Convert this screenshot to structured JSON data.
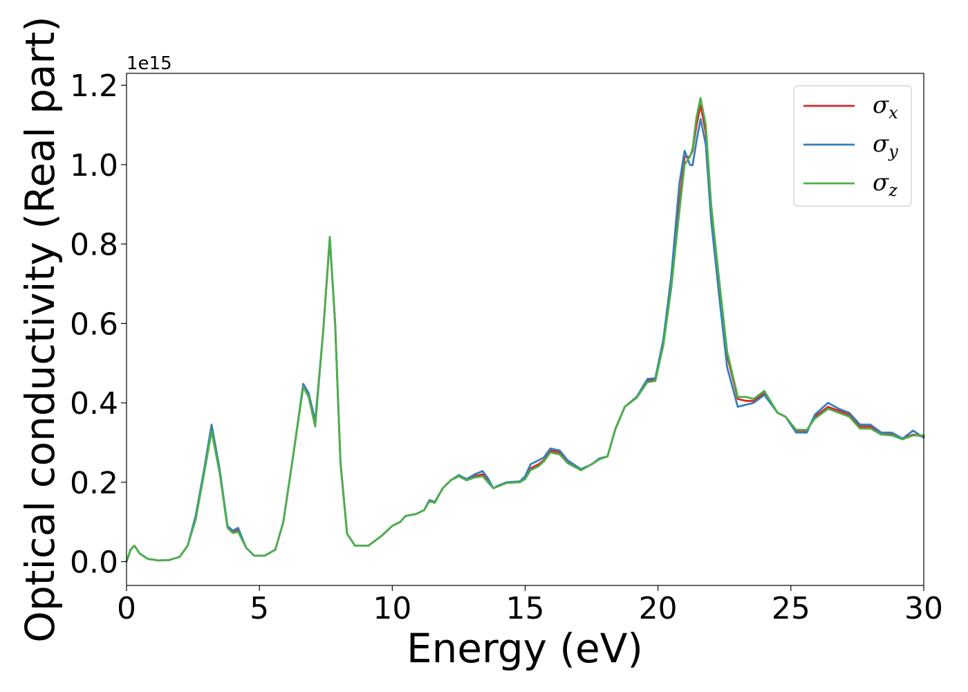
{
  "chart_data": {
    "type": "line",
    "title": "",
    "xlabel": "Energy (eV)",
    "ylabel": "Optical conductivity (Real part)",
    "y_offset_label": "1e15",
    "xlim": [
      0,
      30
    ],
    "ylim": [
      -0.06,
      1.23
    ],
    "x_ticks": [
      0,
      5,
      10,
      15,
      20,
      25,
      30
    ],
    "y_ticks": [
      0.0,
      0.2,
      0.4,
      0.6,
      0.8,
      1.0,
      1.2
    ],
    "y_tick_labels": [
      "0.0",
      "0.2",
      "0.4",
      "0.6",
      "0.8",
      "1.0",
      "1.2"
    ],
    "grid": false,
    "legend_position": "top-right",
    "series": [
      {
        "name": "σ",
        "subscript": "x",
        "color": "#d62728",
        "points": [
          [
            0,
            0.0
          ],
          [
            0.15,
            0.03
          ],
          [
            0.3,
            0.04
          ],
          [
            0.5,
            0.02
          ],
          [
            0.8,
            0.007
          ],
          [
            1.2,
            0.003
          ],
          [
            1.6,
            0.004
          ],
          [
            2.0,
            0.012
          ],
          [
            2.3,
            0.04
          ],
          [
            2.6,
            0.11
          ],
          [
            2.9,
            0.22
          ],
          [
            3.2,
            0.335
          ],
          [
            3.5,
            0.23
          ],
          [
            3.8,
            0.09
          ],
          [
            4.0,
            0.075
          ],
          [
            4.2,
            0.08
          ],
          [
            4.5,
            0.035
          ],
          [
            4.8,
            0.015
          ],
          [
            5.2,
            0.015
          ],
          [
            5.6,
            0.03
          ],
          [
            5.9,
            0.1
          ],
          [
            6.3,
            0.28
          ],
          [
            6.65,
            0.445
          ],
          [
            6.85,
            0.42
          ],
          [
            7.1,
            0.35
          ],
          [
            7.4,
            0.58
          ],
          [
            7.65,
            0.815
          ],
          [
            7.85,
            0.6
          ],
          [
            8.05,
            0.25
          ],
          [
            8.3,
            0.07
          ],
          [
            8.6,
            0.04
          ],
          [
            9.1,
            0.04
          ],
          [
            9.6,
            0.065
          ],
          [
            10.0,
            0.09
          ],
          [
            10.3,
            0.1
          ],
          [
            10.5,
            0.115
          ],
          [
            10.9,
            0.12
          ],
          [
            11.2,
            0.13
          ],
          [
            11.4,
            0.155
          ],
          [
            11.6,
            0.15
          ],
          [
            11.9,
            0.185
          ],
          [
            12.2,
            0.205
          ],
          [
            12.5,
            0.215
          ],
          [
            12.8,
            0.205
          ],
          [
            13.1,
            0.215
          ],
          [
            13.4,
            0.22
          ],
          [
            13.6,
            0.205
          ],
          [
            13.8,
            0.185
          ],
          [
            14.0,
            0.19
          ],
          [
            14.3,
            0.2
          ],
          [
            14.8,
            0.2
          ],
          [
            15.0,
            0.21
          ],
          [
            15.2,
            0.235
          ],
          [
            15.5,
            0.245
          ],
          [
            15.7,
            0.255
          ],
          [
            15.95,
            0.28
          ],
          [
            16.3,
            0.275
          ],
          [
            16.6,
            0.25
          ],
          [
            17.1,
            0.232
          ],
          [
            17.5,
            0.245
          ],
          [
            17.8,
            0.258
          ],
          [
            18.1,
            0.265
          ],
          [
            18.4,
            0.335
          ],
          [
            18.75,
            0.39
          ],
          [
            19.2,
            0.415
          ],
          [
            19.6,
            0.455
          ],
          [
            19.9,
            0.46
          ],
          [
            20.2,
            0.55
          ],
          [
            20.5,
            0.7
          ],
          [
            20.8,
            0.9
          ],
          [
            21.0,
            1.02
          ],
          [
            21.2,
            1.02
          ],
          [
            21.3,
            1.035
          ],
          [
            21.45,
            1.1
          ],
          [
            21.6,
            1.15
          ],
          [
            21.8,
            1.08
          ],
          [
            22.0,
            0.89
          ],
          [
            22.3,
            0.7
          ],
          [
            22.6,
            0.52
          ],
          [
            23.0,
            0.41
          ],
          [
            23.3,
            0.405
          ],
          [
            23.6,
            0.405
          ],
          [
            24.0,
            0.425
          ],
          [
            24.5,
            0.375
          ],
          [
            24.8,
            0.365
          ],
          [
            25.2,
            0.33
          ],
          [
            25.6,
            0.33
          ],
          [
            25.9,
            0.365
          ],
          [
            26.4,
            0.39
          ],
          [
            26.8,
            0.38
          ],
          [
            27.2,
            0.37
          ],
          [
            27.6,
            0.34
          ],
          [
            28.0,
            0.34
          ],
          [
            28.4,
            0.325
          ],
          [
            28.8,
            0.32
          ],
          [
            29.2,
            0.31
          ],
          [
            29.6,
            0.32
          ],
          [
            30.0,
            0.315
          ]
        ]
      },
      {
        "name": "σ",
        "subscript": "y",
        "color": "#377eb8",
        "points": [
          [
            0,
            0.0
          ],
          [
            0.15,
            0.03
          ],
          [
            0.3,
            0.04
          ],
          [
            0.5,
            0.02
          ],
          [
            0.8,
            0.007
          ],
          [
            1.2,
            0.003
          ],
          [
            1.6,
            0.004
          ],
          [
            2.0,
            0.012
          ],
          [
            2.3,
            0.04
          ],
          [
            2.6,
            0.115
          ],
          [
            2.9,
            0.225
          ],
          [
            3.2,
            0.345
          ],
          [
            3.5,
            0.235
          ],
          [
            3.8,
            0.09
          ],
          [
            4.0,
            0.078
          ],
          [
            4.2,
            0.085
          ],
          [
            4.5,
            0.035
          ],
          [
            4.8,
            0.015
          ],
          [
            5.2,
            0.015
          ],
          [
            5.6,
            0.03
          ],
          [
            5.9,
            0.1
          ],
          [
            6.3,
            0.28
          ],
          [
            6.65,
            0.448
          ],
          [
            6.85,
            0.425
          ],
          [
            7.1,
            0.355
          ],
          [
            7.4,
            0.58
          ],
          [
            7.65,
            0.815
          ],
          [
            7.85,
            0.6
          ],
          [
            8.05,
            0.25
          ],
          [
            8.3,
            0.07
          ],
          [
            8.6,
            0.04
          ],
          [
            9.1,
            0.04
          ],
          [
            9.6,
            0.065
          ],
          [
            10.0,
            0.09
          ],
          [
            10.3,
            0.1
          ],
          [
            10.5,
            0.115
          ],
          [
            10.9,
            0.12
          ],
          [
            11.2,
            0.13
          ],
          [
            11.4,
            0.155
          ],
          [
            11.6,
            0.15
          ],
          [
            11.9,
            0.185
          ],
          [
            12.2,
            0.205
          ],
          [
            12.5,
            0.218
          ],
          [
            12.8,
            0.208
          ],
          [
            13.1,
            0.22
          ],
          [
            13.4,
            0.228
          ],
          [
            13.6,
            0.21
          ],
          [
            13.8,
            0.185
          ],
          [
            14.0,
            0.192
          ],
          [
            14.3,
            0.2
          ],
          [
            14.8,
            0.202
          ],
          [
            15.0,
            0.215
          ],
          [
            15.2,
            0.245
          ],
          [
            15.5,
            0.255
          ],
          [
            15.7,
            0.262
          ],
          [
            15.95,
            0.285
          ],
          [
            16.3,
            0.28
          ],
          [
            16.6,
            0.255
          ],
          [
            17.1,
            0.233
          ],
          [
            17.5,
            0.245
          ],
          [
            17.8,
            0.26
          ],
          [
            18.1,
            0.265
          ],
          [
            18.4,
            0.335
          ],
          [
            18.75,
            0.39
          ],
          [
            19.2,
            0.415
          ],
          [
            19.6,
            0.46
          ],
          [
            19.9,
            0.462
          ],
          [
            20.2,
            0.56
          ],
          [
            20.5,
            0.72
          ],
          [
            20.8,
            0.95
          ],
          [
            21.0,
            1.035
          ],
          [
            21.2,
            1.0
          ],
          [
            21.3,
            0.998
          ],
          [
            21.45,
            1.06
          ],
          [
            21.6,
            1.115
          ],
          [
            21.8,
            1.05
          ],
          [
            22.0,
            0.86
          ],
          [
            22.3,
            0.67
          ],
          [
            22.6,
            0.49
          ],
          [
            23.0,
            0.39
          ],
          [
            23.3,
            0.395
          ],
          [
            23.6,
            0.4
          ],
          [
            24.0,
            0.42
          ],
          [
            24.5,
            0.375
          ],
          [
            24.8,
            0.365
          ],
          [
            25.2,
            0.325
          ],
          [
            25.6,
            0.325
          ],
          [
            25.9,
            0.37
          ],
          [
            26.4,
            0.4
          ],
          [
            26.8,
            0.385
          ],
          [
            27.2,
            0.375
          ],
          [
            27.6,
            0.345
          ],
          [
            28.0,
            0.345
          ],
          [
            28.4,
            0.325
          ],
          [
            28.8,
            0.325
          ],
          [
            29.2,
            0.31
          ],
          [
            29.6,
            0.33
          ],
          [
            30.0,
            0.312
          ]
        ]
      },
      {
        "name": "σ",
        "subscript": "z",
        "color": "#4daf4a",
        "points": [
          [
            0,
            0.0
          ],
          [
            0.15,
            0.03
          ],
          [
            0.3,
            0.04
          ],
          [
            0.5,
            0.02
          ],
          [
            0.8,
            0.007
          ],
          [
            1.2,
            0.003
          ],
          [
            1.6,
            0.004
          ],
          [
            2.0,
            0.012
          ],
          [
            2.3,
            0.04
          ],
          [
            2.6,
            0.105
          ],
          [
            2.9,
            0.215
          ],
          [
            3.2,
            0.328
          ],
          [
            3.5,
            0.225
          ],
          [
            3.8,
            0.085
          ],
          [
            4.0,
            0.072
          ],
          [
            4.2,
            0.075
          ],
          [
            4.5,
            0.035
          ],
          [
            4.8,
            0.015
          ],
          [
            5.2,
            0.015
          ],
          [
            5.6,
            0.03
          ],
          [
            5.9,
            0.1
          ],
          [
            6.3,
            0.28
          ],
          [
            6.65,
            0.44
          ],
          [
            6.85,
            0.415
          ],
          [
            7.1,
            0.34
          ],
          [
            7.4,
            0.58
          ],
          [
            7.65,
            0.818
          ],
          [
            7.85,
            0.6
          ],
          [
            8.05,
            0.25
          ],
          [
            8.3,
            0.07
          ],
          [
            8.6,
            0.04
          ],
          [
            9.1,
            0.04
          ],
          [
            9.6,
            0.065
          ],
          [
            10.0,
            0.09
          ],
          [
            10.3,
            0.1
          ],
          [
            10.5,
            0.115
          ],
          [
            10.9,
            0.12
          ],
          [
            11.2,
            0.13
          ],
          [
            11.4,
            0.152
          ],
          [
            11.6,
            0.148
          ],
          [
            11.9,
            0.185
          ],
          [
            12.2,
            0.205
          ],
          [
            12.5,
            0.215
          ],
          [
            12.8,
            0.205
          ],
          [
            13.1,
            0.212
          ],
          [
            13.4,
            0.215
          ],
          [
            13.6,
            0.2
          ],
          [
            13.8,
            0.185
          ],
          [
            14.0,
            0.19
          ],
          [
            14.3,
            0.198
          ],
          [
            14.8,
            0.2
          ],
          [
            15.0,
            0.208
          ],
          [
            15.2,
            0.23
          ],
          [
            15.5,
            0.24
          ],
          [
            15.7,
            0.252
          ],
          [
            15.95,
            0.275
          ],
          [
            16.3,
            0.27
          ],
          [
            16.6,
            0.248
          ],
          [
            17.1,
            0.23
          ],
          [
            17.5,
            0.245
          ],
          [
            17.8,
            0.258
          ],
          [
            18.1,
            0.265
          ],
          [
            18.4,
            0.335
          ],
          [
            18.75,
            0.39
          ],
          [
            19.2,
            0.413
          ],
          [
            19.6,
            0.452
          ],
          [
            19.9,
            0.455
          ],
          [
            20.2,
            0.545
          ],
          [
            20.5,
            0.69
          ],
          [
            20.8,
            0.88
          ],
          [
            21.0,
            1.0
          ],
          [
            21.2,
            1.02
          ],
          [
            21.3,
            1.04
          ],
          [
            21.45,
            1.12
          ],
          [
            21.6,
            1.168
          ],
          [
            21.8,
            1.1
          ],
          [
            22.0,
            0.9
          ],
          [
            22.3,
            0.71
          ],
          [
            22.6,
            0.53
          ],
          [
            23.0,
            0.415
          ],
          [
            23.3,
            0.415
          ],
          [
            23.6,
            0.41
          ],
          [
            24.0,
            0.43
          ],
          [
            24.5,
            0.375
          ],
          [
            24.8,
            0.365
          ],
          [
            25.2,
            0.332
          ],
          [
            25.6,
            0.332
          ],
          [
            25.9,
            0.36
          ],
          [
            26.4,
            0.385
          ],
          [
            26.8,
            0.375
          ],
          [
            27.2,
            0.365
          ],
          [
            27.6,
            0.335
          ],
          [
            28.0,
            0.335
          ],
          [
            28.4,
            0.32
          ],
          [
            28.8,
            0.318
          ],
          [
            29.2,
            0.308
          ],
          [
            29.6,
            0.318
          ],
          [
            30.0,
            0.318
          ]
        ]
      }
    ]
  }
}
